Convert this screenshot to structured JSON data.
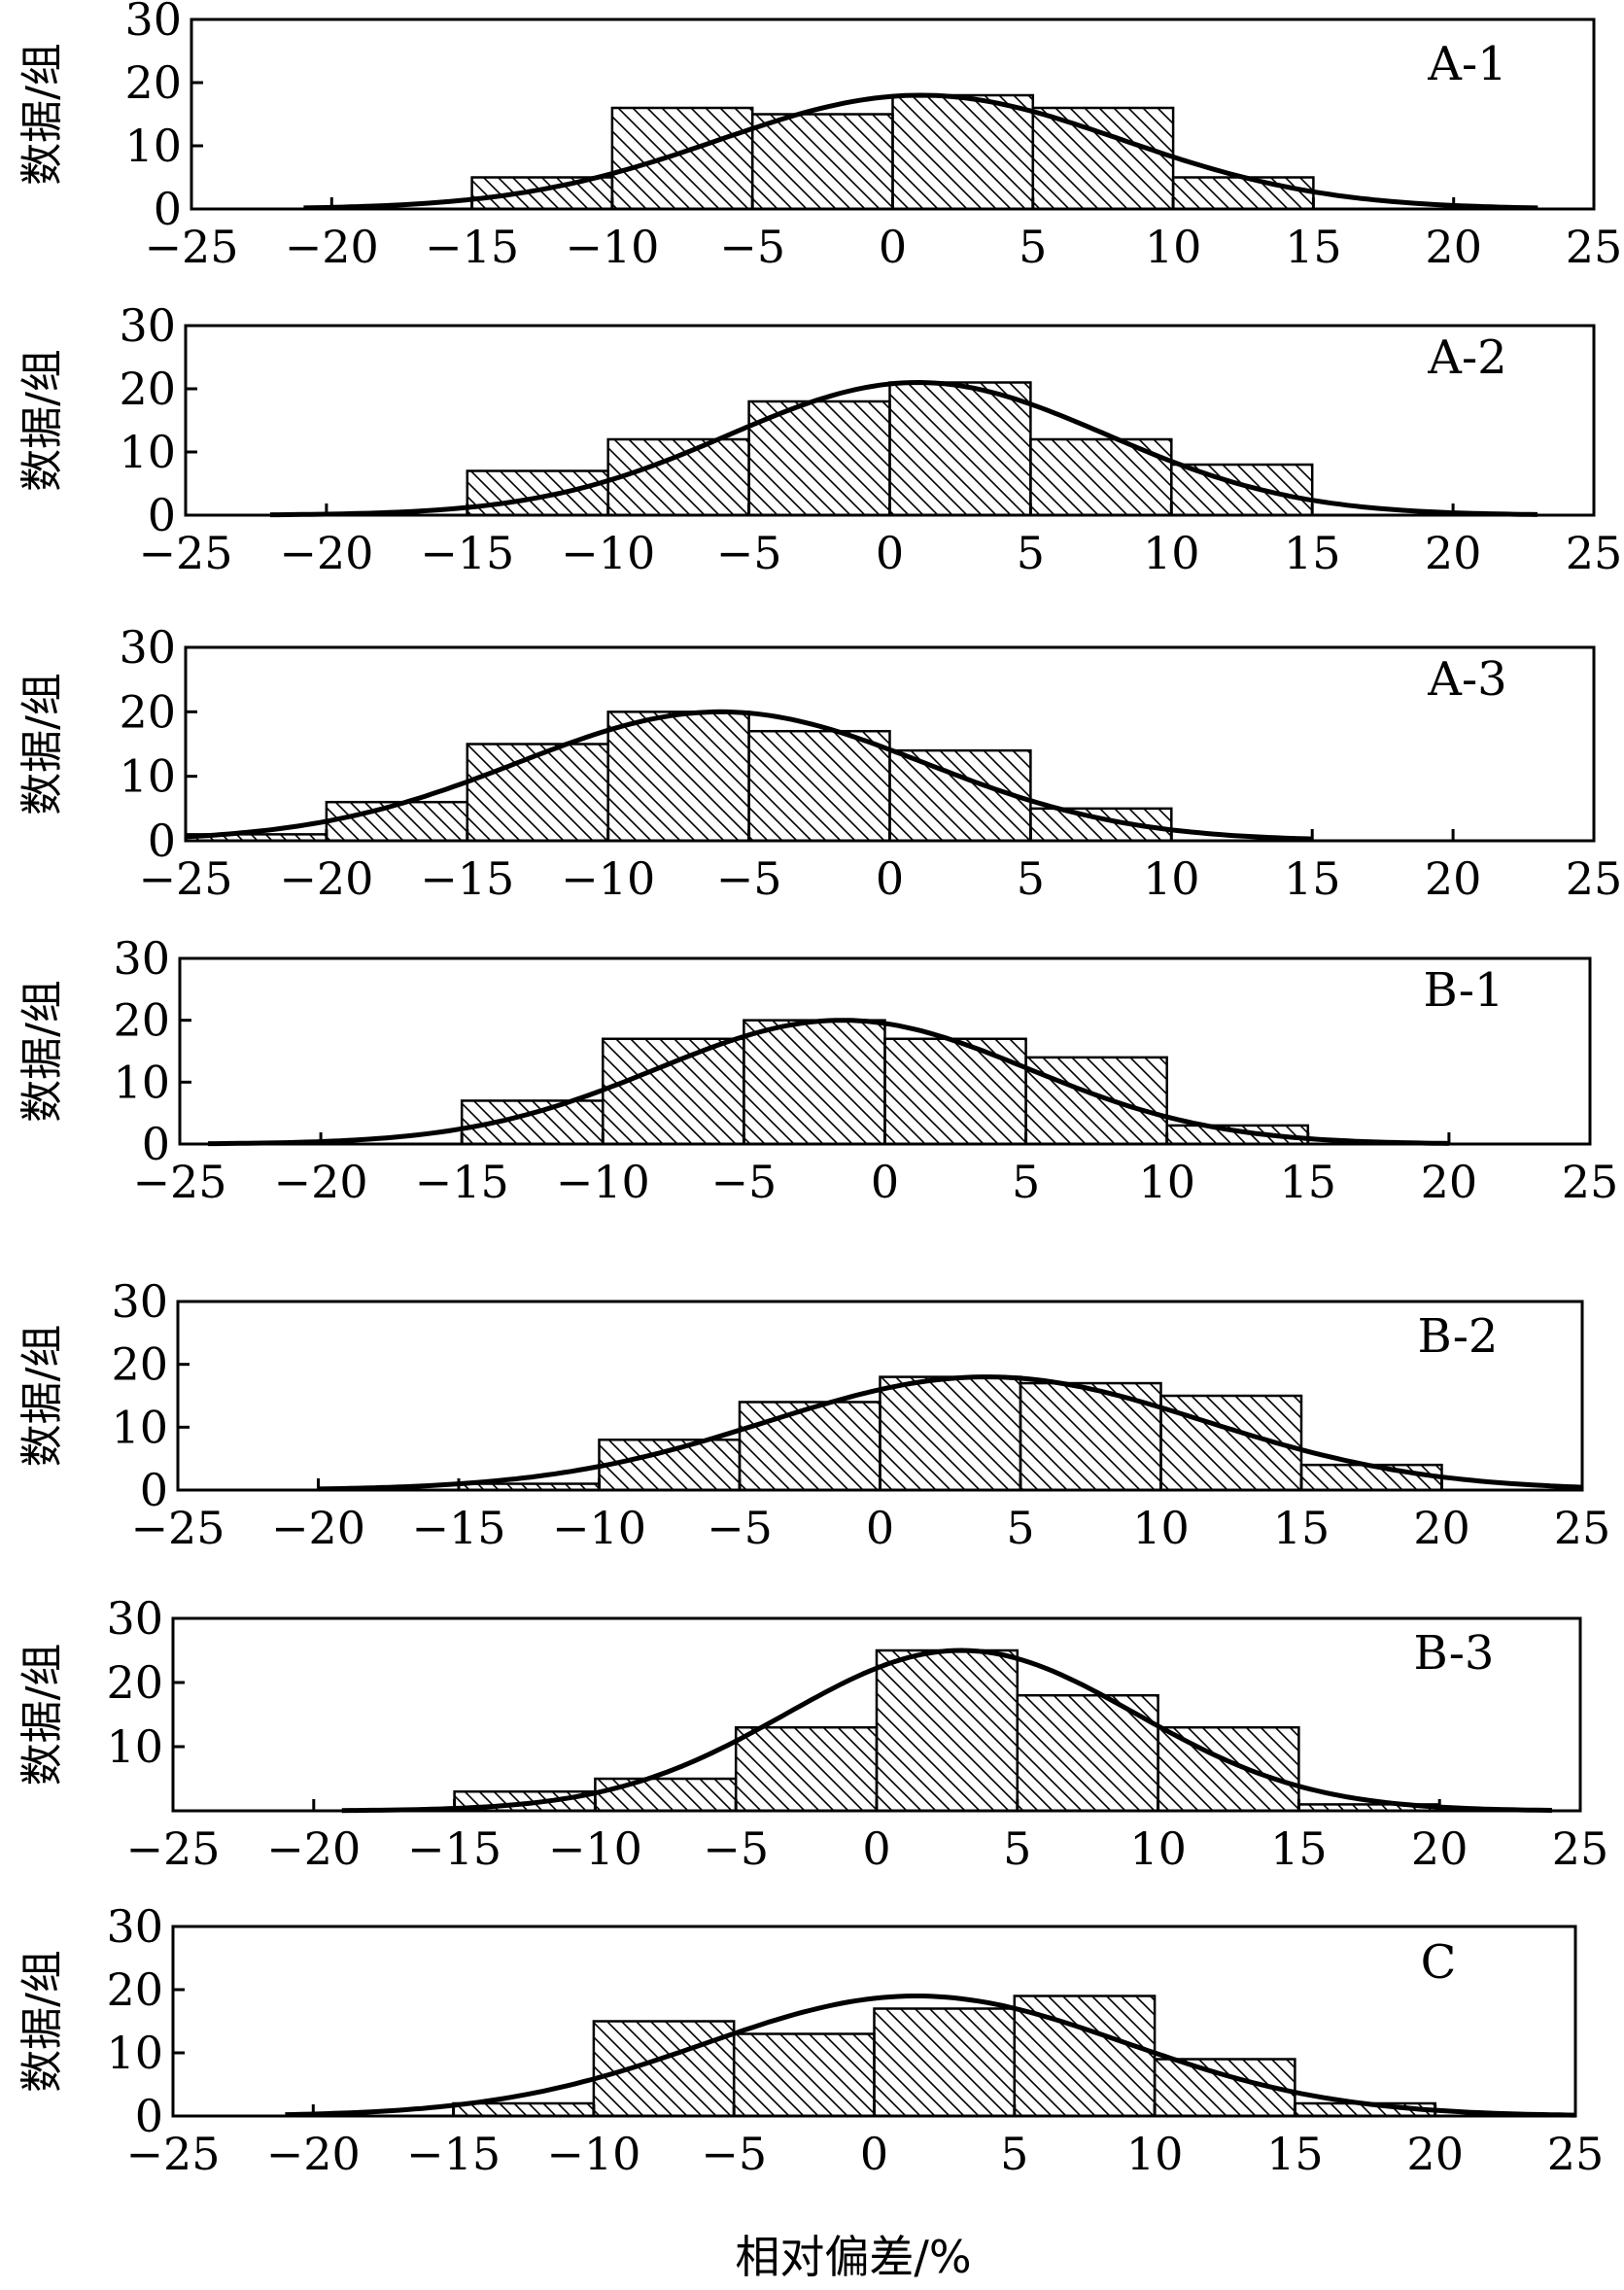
{
  "xlabel": "相对偏差/%",
  "chart_data": [
    {
      "type": "bar",
      "label": "A-1",
      "ylabel": "数据/组",
      "bin_edges": [
        -15,
        -10,
        -5,
        0,
        5,
        10,
        15
      ],
      "values": [
        5,
        16,
        15,
        18,
        16,
        5
      ],
      "curve": {
        "mean": 1,
        "sd": 7.2,
        "peak": 18,
        "range": [
          -21,
          23
        ]
      },
      "xlim": [
        -25,
        25
      ],
      "ylim": [
        0,
        30
      ],
      "xticks": [
        -25,
        -20,
        -15,
        -10,
        -5,
        0,
        5,
        10,
        15,
        20,
        25
      ],
      "yticks": [
        0,
        10,
        20,
        30
      ]
    },
    {
      "type": "bar",
      "label": "A-2",
      "ylabel": "数据/组",
      "bin_edges": [
        -15,
        -10,
        -5,
        0,
        5,
        10,
        15
      ],
      "values": [
        7,
        12,
        18,
        21,
        12,
        8
      ],
      "curve": {
        "mean": 1,
        "sd": 6.7,
        "peak": 21,
        "range": [
          -22,
          23
        ]
      },
      "xlim": [
        -25,
        25
      ],
      "ylim": [
        0,
        30
      ],
      "xticks": [
        -25,
        -20,
        -15,
        -10,
        -5,
        0,
        5,
        10,
        15,
        20,
        25
      ],
      "yticks": [
        0,
        10,
        20,
        30
      ]
    },
    {
      "type": "bar",
      "label": "A-3",
      "ylabel": "数据/组",
      "bin_edges": [
        -25,
        -20,
        -15,
        -10,
        -5,
        0,
        5,
        10
      ],
      "values": [
        1,
        6,
        15,
        20,
        17,
        14,
        5
      ],
      "curve": {
        "mean": -6,
        "sd": 7.2,
        "peak": 20,
        "range": [
          -25,
          15
        ]
      },
      "xlim": [
        -25,
        25
      ],
      "ylim": [
        0,
        30
      ],
      "xticks": [
        -25,
        -20,
        -15,
        -10,
        -5,
        0,
        5,
        10,
        15,
        20,
        25
      ],
      "yticks": [
        0,
        10,
        20,
        30
      ]
    },
    {
      "type": "bar",
      "label": "B-1",
      "ylabel": "数据/组",
      "bin_edges": [
        -15,
        -10,
        -5,
        0,
        5,
        10,
        15
      ],
      "values": [
        7,
        17,
        20,
        17,
        14,
        3
      ],
      "curve": {
        "mean": -1.5,
        "sd": 6.6,
        "peak": 20,
        "range": [
          -24,
          20
        ]
      },
      "xlim": [
        -25,
        25
      ],
      "ylim": [
        0,
        30
      ],
      "xticks": [
        -25,
        -20,
        -15,
        -10,
        -5,
        0,
        5,
        10,
        15,
        20,
        25
      ],
      "yticks": [
        0,
        10,
        20,
        30
      ]
    },
    {
      "type": "bar",
      "label": "B-2",
      "ylabel": "数据/组",
      "bin_edges": [
        -15,
        -10,
        -5,
        0,
        5,
        10,
        15,
        20
      ],
      "values": [
        1,
        8,
        14,
        18,
        17,
        15,
        4
      ],
      "curve": {
        "mean": 3.8,
        "sd": 7.8,
        "peak": 18,
        "range": [
          -20,
          25
        ]
      },
      "xlim": [
        -25,
        25
      ],
      "ylim": [
        0,
        30
      ],
      "xticks": [
        -25,
        -20,
        -15,
        -10,
        -5,
        0,
        5,
        10,
        15,
        20,
        25
      ],
      "yticks": [
        0,
        10,
        20,
        30
      ]
    },
    {
      "type": "bar",
      "label": "B-3",
      "ylabel": "数据/组",
      "bin_edges": [
        -15,
        -10,
        -5,
        0,
        5,
        10,
        15,
        20
      ],
      "values": [
        3,
        5,
        13,
        25,
        18,
        13,
        1
      ],
      "curve": {
        "mean": 3,
        "sd": 6.2,
        "peak": 25,
        "range": [
          -19,
          24
        ]
      },
      "xlim": [
        -25,
        25
      ],
      "ylim": [
        0,
        30
      ],
      "xticks": [
        -25,
        -20,
        -15,
        -10,
        -5,
        0,
        5,
        10,
        15,
        20,
        25
      ],
      "yticks": [
        10,
        20,
        30
      ]
    },
    {
      "type": "bar",
      "label": "C",
      "ylabel": "数据/组",
      "bin_edges": [
        -15,
        -10,
        -5,
        0,
        5,
        10,
        15,
        20
      ],
      "values": [
        2,
        15,
        13,
        17,
        19,
        9,
        2
      ],
      "curve": {
        "mean": 1.5,
        "sd": 7.5,
        "peak": 19,
        "range": [
          -21,
          25
        ]
      },
      "xlim": [
        -25,
        25
      ],
      "ylim": [
        0,
        30
      ],
      "xticks": [
        -25,
        -20,
        -15,
        -10,
        -5,
        0,
        5,
        10,
        15,
        20,
        25
      ],
      "yticks": [
        0,
        10,
        20,
        30
      ]
    }
  ]
}
